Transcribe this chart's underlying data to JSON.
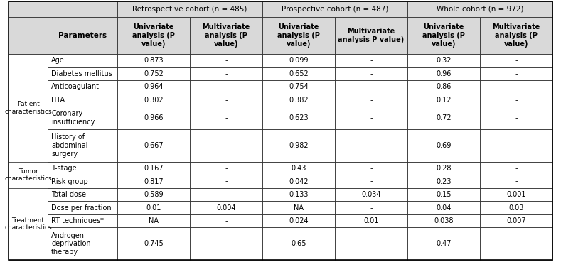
{
  "col_group_labels": [
    "Retrospective cohort (n = 485)",
    "Prospective cohort (n = 487)",
    "Whole cohort (n = 972)"
  ],
  "col_header_row": [
    "Parameters",
    "Univariate\nanalysis (P\nvalue)",
    "Multivariate\nanalysis (P\nvalue)",
    "Univariate\nanalysis (P\nvalue)",
    "Multivariate\nanalysis P value)",
    "Univariate\nanalysis (P\nvalue)",
    "Multivariate\nanalysis (P\nvalue)"
  ],
  "row_groups": [
    {
      "group_label": "Patient\ncharacteristics",
      "rows": [
        [
          "Age",
          "0.873",
          "-",
          "0.099",
          "-",
          "0.32",
          "-"
        ],
        [
          "Diabetes mellitus",
          "0.752",
          "-",
          "0.652",
          "-",
          "0.96",
          "-"
        ],
        [
          "Anticoagulant",
          "0.964",
          "-",
          "0.754",
          "-",
          "0.86",
          "-"
        ],
        [
          "HTA",
          "0.302",
          "-",
          "0.382",
          "-",
          "0.12",
          "-"
        ],
        [
          "Coronary\ninsufficiency",
          "0.966",
          "-",
          "0.623",
          "-",
          "0.72",
          "-"
        ],
        [
          "History of\nabdominal\nsurgery",
          "0.667",
          "-",
          "0.982",
          "-",
          "0.69",
          "-"
        ]
      ]
    },
    {
      "group_label": "Tumor\ncharacteristics",
      "rows": [
        [
          "T-stage",
          "0.167",
          "-",
          "0.43",
          "-",
          "0.28",
          "-"
        ],
        [
          "Risk group",
          "0.817",
          "-",
          "0.042",
          "-",
          "0.23",
          "-"
        ]
      ]
    },
    {
      "group_label": "Treatment\ncharacteristics",
      "rows": [
        [
          "Total dose",
          "0.589",
          "-",
          "0.133",
          "0.034",
          "0.15",
          "0.001"
        ],
        [
          "Dose per fraction",
          "0.01",
          "0.004",
          "NA",
          "-",
          "0.04",
          "0.03"
        ],
        [
          "RT techniques*",
          "NA",
          "-",
          "0.024",
          "0.01",
          "0.038",
          "0.007"
        ],
        [
          "Androgen\ndeprivation\ntherapy",
          "0.745",
          "-",
          "0.65",
          "-",
          "0.47",
          "-"
        ]
      ]
    }
  ],
  "bg_header": "#d9d9d9",
  "bg_white": "#ffffff",
  "border_color": "#333333",
  "text_color": "#000000"
}
